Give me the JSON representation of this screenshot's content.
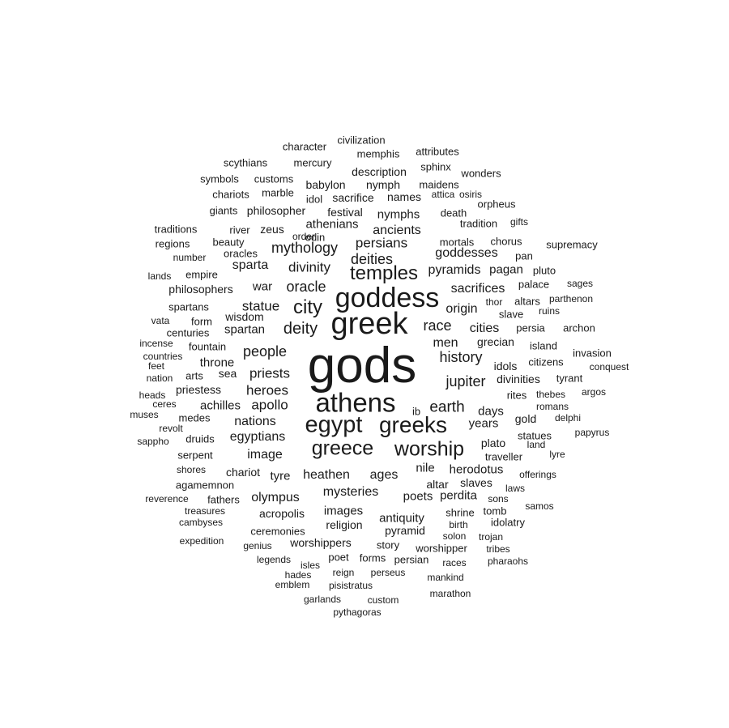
{
  "words": [
    {
      "text": "gods"
    },
    {
      "text": "greek"
    },
    {
      "text": "goddess"
    },
    {
      "text": "athens"
    },
    {
      "text": "egypt"
    },
    {
      "text": "greeks"
    },
    {
      "text": "greece"
    },
    {
      "text": "worship"
    },
    {
      "text": "temples"
    },
    {
      "text": "city"
    },
    {
      "text": "deities"
    },
    {
      "text": "jupiter"
    },
    {
      "text": "earth"
    },
    {
      "text": "deity"
    },
    {
      "text": "race"
    },
    {
      "text": "oracle"
    },
    {
      "text": "mythology"
    },
    {
      "text": "persians"
    },
    {
      "text": "ancients"
    },
    {
      "text": "statue"
    },
    {
      "text": "history"
    },
    {
      "text": "people"
    },
    {
      "text": "priests"
    },
    {
      "text": "heroes"
    },
    {
      "text": "apollo"
    },
    {
      "text": "nations"
    },
    {
      "text": "egyptians"
    },
    {
      "text": "heathen"
    },
    {
      "text": "ages"
    },
    {
      "text": "divinity"
    },
    {
      "text": "goddesses"
    },
    {
      "text": "pyramids"
    },
    {
      "text": "sacrifices"
    },
    {
      "text": "origin"
    },
    {
      "text": "cities"
    },
    {
      "text": "men"
    },
    {
      "text": "image"
    },
    {
      "text": "mysteries"
    },
    {
      "text": "sparta"
    },
    {
      "text": "spartan"
    },
    {
      "text": "war"
    },
    {
      "text": "athenians"
    },
    {
      "text": "nymphs"
    },
    {
      "text": "pagan"
    },
    {
      "text": "years"
    },
    {
      "text": "days"
    },
    {
      "text": "nile"
    },
    {
      "text": "herodotus"
    },
    {
      "text": "images"
    },
    {
      "text": "poets"
    },
    {
      "text": "perdita"
    },
    {
      "text": "olympus"
    },
    {
      "text": "antiquity"
    },
    {
      "text": "pyramid"
    },
    {
      "text": "plato"
    },
    {
      "text": "altar"
    },
    {
      "text": "slaves"
    },
    {
      "text": "tyre"
    },
    {
      "text": "chariot"
    },
    {
      "text": "achilles"
    },
    {
      "text": "priestess"
    },
    {
      "text": "wisdom"
    },
    {
      "text": "throne"
    },
    {
      "text": "sea"
    },
    {
      "text": "grecian"
    },
    {
      "text": "divinities"
    },
    {
      "text": "idols"
    },
    {
      "text": "persia"
    },
    {
      "text": "statues"
    },
    {
      "text": "traveller"
    },
    {
      "text": "gold"
    },
    {
      "text": "shrine"
    },
    {
      "text": "tomb"
    },
    {
      "text": "acropolis"
    },
    {
      "text": "religion"
    },
    {
      "text": "worshippers"
    },
    {
      "text": "ceremonies"
    },
    {
      "text": "story"
    },
    {
      "text": "worshipper"
    },
    {
      "text": "poet"
    },
    {
      "text": "forms"
    },
    {
      "text": "persian"
    },
    {
      "text": "festival"
    },
    {
      "text": "sacrifice"
    },
    {
      "text": "names"
    },
    {
      "text": "description"
    },
    {
      "text": "nymph"
    },
    {
      "text": "babylon"
    },
    {
      "text": "philosopher"
    },
    {
      "text": "zeus"
    },
    {
      "text": "death"
    },
    {
      "text": "customs"
    },
    {
      "text": "marble"
    },
    {
      "text": "memphis"
    },
    {
      "text": "sphinx"
    },
    {
      "text": "mercury"
    },
    {
      "text": "character"
    },
    {
      "text": "civilization"
    },
    {
      "text": "attributes"
    },
    {
      "text": "scythians"
    },
    {
      "text": "symbols"
    },
    {
      "text": "chariots"
    },
    {
      "text": "idol"
    },
    {
      "text": "maidens"
    },
    {
      "text": "wonders"
    },
    {
      "text": "attica"
    },
    {
      "text": "osiris"
    },
    {
      "text": "orpheus"
    },
    {
      "text": "giants"
    },
    {
      "text": "tradition"
    },
    {
      "text": "gifts"
    },
    {
      "text": "traditions"
    },
    {
      "text": "river"
    },
    {
      "text": "odin"
    },
    {
      "text": "order"
    },
    {
      "text": "beauty"
    },
    {
      "text": "oracles"
    },
    {
      "text": "mortals"
    },
    {
      "text": "chorus"
    },
    {
      "text": "supremacy"
    },
    {
      "text": "regions"
    },
    {
      "text": "number"
    },
    {
      "text": "empire"
    },
    {
      "text": "lands"
    },
    {
      "text": "pan"
    },
    {
      "text": "pluto"
    },
    {
      "text": "palace"
    },
    {
      "text": "sages"
    },
    {
      "text": "philosophers"
    },
    {
      "text": "spartans"
    },
    {
      "text": "thor"
    },
    {
      "text": "altars"
    },
    {
      "text": "parthenon"
    },
    {
      "text": "slave"
    },
    {
      "text": "ruins"
    },
    {
      "text": "archon"
    },
    {
      "text": "vata"
    },
    {
      "text": "form"
    },
    {
      "text": "centuries"
    },
    {
      "text": "incense"
    },
    {
      "text": "fountain"
    },
    {
      "text": "island"
    },
    {
      "text": "invasion"
    },
    {
      "text": "countries"
    },
    {
      "text": "feet"
    },
    {
      "text": "nation"
    },
    {
      "text": "arts"
    },
    {
      "text": "citizens"
    },
    {
      "text": "conquest"
    },
    {
      "text": "tyrant"
    },
    {
      "text": "heads"
    },
    {
      "text": "ceres"
    },
    {
      "text": "rites"
    },
    {
      "text": "thebes"
    },
    {
      "text": "argos"
    },
    {
      "text": "romans"
    },
    {
      "text": "muses"
    },
    {
      "text": "medes"
    },
    {
      "text": "ib"
    },
    {
      "text": "delphi"
    },
    {
      "text": "revolt"
    },
    {
      "text": "sappho"
    },
    {
      "text": "druids"
    },
    {
      "text": "land"
    },
    {
      "text": "papyrus"
    },
    {
      "text": "serpent"
    },
    {
      "text": "lyre"
    },
    {
      "text": "shores"
    },
    {
      "text": "offerings"
    },
    {
      "text": "agamemnon"
    },
    {
      "text": "laws"
    },
    {
      "text": "reverence"
    },
    {
      "text": "fathers"
    },
    {
      "text": "sons"
    },
    {
      "text": "samos"
    },
    {
      "text": "treasures"
    },
    {
      "text": "cambyses"
    },
    {
      "text": "idolatry"
    },
    {
      "text": "birth"
    },
    {
      "text": "solon"
    },
    {
      "text": "trojan"
    },
    {
      "text": "expedition"
    },
    {
      "text": "genius"
    },
    {
      "text": "tribes"
    },
    {
      "text": "legends"
    },
    {
      "text": "isles"
    },
    {
      "text": "races"
    },
    {
      "text": "pharaohs"
    },
    {
      "text": "hades"
    },
    {
      "text": "reign"
    },
    {
      "text": "perseus"
    },
    {
      "text": "emblem"
    },
    {
      "text": "pisistratus"
    },
    {
      "text": "mankind"
    },
    {
      "text": "garlands"
    },
    {
      "text": "custom"
    },
    {
      "text": "marathon"
    },
    {
      "text": "pythagoras"
    }
  ]
}
